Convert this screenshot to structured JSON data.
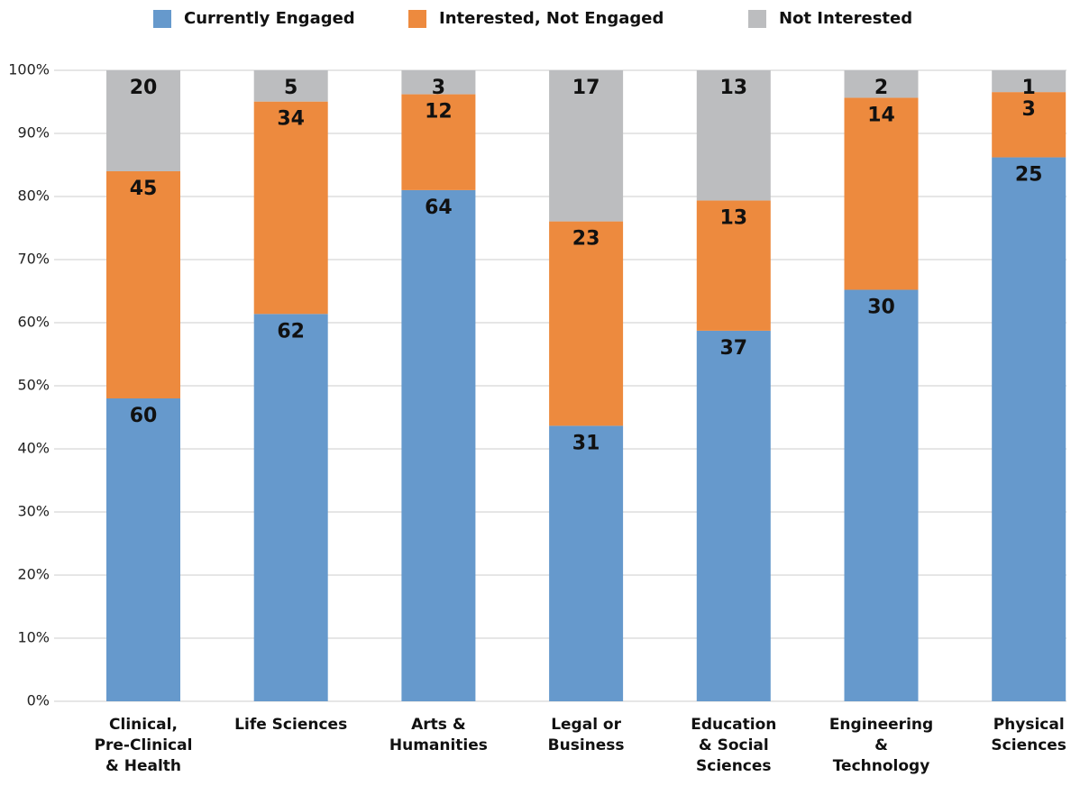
{
  "chart_data": {
    "type": "bar",
    "stacking": "percent",
    "categories": [
      "Clinical,\nPre-Clinical\n& Health",
      "Life Sciences",
      "Arts &\nHumanities",
      "Legal or\nBusiness",
      "Education\n& Social\nSciences",
      "Engineering\n&\nTechnology",
      "Physical\nSciences"
    ],
    "series": [
      {
        "name": "Currently Engaged",
        "color": "#6699cc",
        "values": [
          60,
          62,
          64,
          31,
          37,
          30,
          25
        ]
      },
      {
        "name": "Interested, Not Engaged",
        "color": "#ed8a3e",
        "values": [
          45,
          34,
          12,
          23,
          13,
          14,
          3
        ]
      },
      {
        "name": "Not Interested",
        "color": "#bcbdbf",
        "values": [
          20,
          5,
          3,
          17,
          13,
          2,
          1
        ]
      }
    ],
    "ylim": [
      0,
      100
    ],
    "yticks": [
      {
        "value": 0,
        "label": "0%"
      },
      {
        "value": 10,
        "label": "10%"
      },
      {
        "value": 20,
        "label": "20%"
      },
      {
        "value": 30,
        "label": "30%"
      },
      {
        "value": 40,
        "label": "40%"
      },
      {
        "value": 50,
        "label": "50%"
      },
      {
        "value": 60,
        "label": "60%"
      },
      {
        "value": 70,
        "label": "70%"
      },
      {
        "value": 80,
        "label": "80%"
      },
      {
        "value": 90,
        "label": "90%"
      },
      {
        "value": 100,
        "label": "100%"
      }
    ],
    "grid": true,
    "legend": "top"
  }
}
